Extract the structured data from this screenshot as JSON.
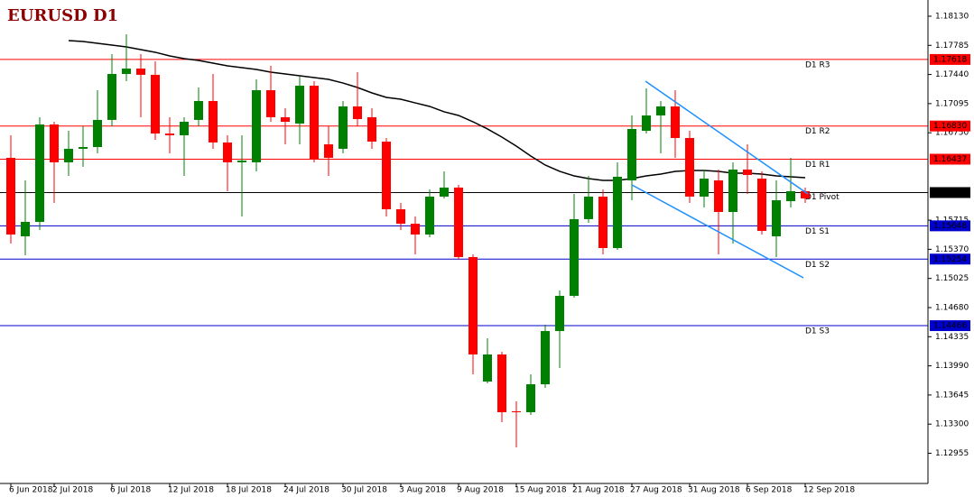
{
  "chart_data": {
    "type": "candlestick",
    "title": "EURUSD D1",
    "categories": [
      "6 Jun 2018",
      null,
      null,
      "2 Jul 2018",
      null,
      null,
      null,
      "6 Jul 2018",
      null,
      null,
      null,
      "12 Jul 2018",
      null,
      null,
      null,
      "18 Jul 2018",
      null,
      null,
      null,
      "24 Jul 2018",
      null,
      null,
      null,
      "30 Jul 2018",
      null,
      null,
      null,
      "3 Aug 2018",
      null,
      null,
      null,
      "9 Aug 2018",
      null,
      null,
      null,
      "15 Aug 2018",
      null,
      null,
      null,
      "21 Aug 2018",
      null,
      null,
      null,
      "27 Aug 2018",
      null,
      null,
      null,
      "31 Aug 2018",
      null,
      null,
      null,
      "6 Sep 2018",
      null,
      null,
      null,
      "12 Sep 2018"
    ],
    "open": [
      1.16453,
      1.15524,
      1.15695,
      1.16848,
      1.164,
      1.1656,
      1.16581,
      1.16902,
      1.17446,
      1.1751,
      1.17436,
      1.16741,
      1.1672,
      1.16902,
      1.17126,
      1.16635,
      1.164,
      1.164,
      1.17254,
      1.16934,
      1.16859,
      1.17307,
      1.16613,
      1.1656,
      1.17062,
      1.16934,
      1.16645,
      1.15844,
      1.15673,
      1.15545,
      1.15994,
      1.16101,
      1.15278,
      1.13804,
      1.14125,
      1.13452,
      1.13441,
      1.13772,
      1.14402,
      1.14819,
      1.15727,
      1.15994,
      1.15385,
      1.16186,
      1.16773,
      1.16955,
      1.17062,
      1.16688,
      1.15994,
      1.16186,
      1.15812,
      1.16314,
      1.16207,
      1.15524,
      1.1594,
      1.16058
    ],
    "high": [
      1.1672,
      1.16186,
      1.16934,
      1.1688,
      1.16773,
      1.16827,
      1.17254,
      1.17681,
      1.17916,
      1.17681,
      1.17596,
      1.16934,
      1.16934,
      1.17286,
      1.17446,
      1.1672,
      1.1672,
      1.17382,
      1.17542,
      1.1704,
      1.17414,
      1.17361,
      1.16827,
      1.17126,
      1.17468,
      1.1704,
      1.16688,
      1.15919,
      1.15759,
      1.16079,
      1.16293,
      1.16133,
      1.1531,
      1.14317,
      1.14157,
      1.13569,
      1.1389,
      1.14477,
      1.14883,
      1.16026,
      1.16239,
      1.16079,
      1.164,
      1.16955,
      1.17275,
      1.17126,
      1.17254,
      1.16773,
      1.16314,
      1.16314,
      1.164,
      1.16613,
      1.16293,
      1.16186,
      1.16453,
      1.16101
    ],
    "low": [
      1.15438,
      1.153,
      1.15599,
      1.15919,
      1.16239,
      1.16346,
      1.16506,
      1.16827,
      1.17361,
      1.16934,
      1.16667,
      1.16506,
      1.16239,
      1.16827,
      1.1656,
      1.16058,
      1.15759,
      1.16293,
      1.1688,
      1.16613,
      1.16613,
      1.164,
      1.16239,
      1.16506,
      1.16827,
      1.1656,
      1.15759,
      1.15599,
      1.1531,
      1.15513,
      1.15972,
      1.15246,
      1.1389,
      1.13783,
      1.13324,
      1.13025,
      1.13409,
      1.1373,
      1.13965,
      1.14798,
      1.15684,
      1.1531,
      1.15364,
      1.15951,
      1.16741,
      1.16506,
      1.16453,
      1.15919,
      1.15866,
      1.1531,
      1.15438,
      1.16026,
      1.15545,
      1.15278,
      1.15866,
      1.15919
    ],
    "close": [
      1.15545,
      1.15695,
      1.16848,
      1.164,
      1.1656,
      1.16581,
      1.16902,
      1.17446,
      1.1751,
      1.17436,
      1.16741,
      1.1672,
      1.1688,
      1.17126,
      1.16635,
      1.164,
      1.16421,
      1.17254,
      1.16934,
      1.1688,
      1.17307,
      1.16432,
      1.16453,
      1.17062,
      1.16912,
      1.16645,
      1.15844,
      1.15673,
      1.15545,
      1.15994,
      1.16101,
      1.15278,
      1.14125,
      1.14125,
      1.13441,
      1.13441,
      1.13772,
      1.14402,
      1.14819,
      1.15727,
      1.15994,
      1.15385,
      1.16229,
      1.16795,
      1.16955,
      1.17062,
      1.16688,
      1.15994,
      1.16207,
      1.15812,
      1.16314,
      1.1625,
      1.15588,
      1.15951,
      1.16058,
      1.15972
    ],
    "ma_values": [
      null,
      null,
      null,
      null,
      1.17841,
      1.17831,
      1.17809,
      1.17788,
      1.17767,
      1.17735,
      1.17703,
      1.1766,
      1.17628,
      1.17606,
      1.17574,
      1.17542,
      1.17521,
      1.175,
      1.17468,
      1.17446,
      1.17425,
      1.17404,
      1.17382,
      1.17339,
      1.17286,
      1.17222,
      1.17169,
      1.17147,
      1.17104,
      1.17062,
      1.16998,
      1.16955,
      1.1688,
      1.16795,
      1.16699,
      1.16592,
      1.16474,
      1.16368,
      1.16293,
      1.16239,
      1.16207,
      1.16186,
      1.16186,
      1.16207,
      1.16239,
      1.16261,
      1.16293,
      1.16303,
      1.16303,
      1.16293,
      1.16271,
      1.16271,
      1.16261,
      1.16239,
      1.16229,
      1.16218
    ],
    "up_color": "#008000",
    "down_color": "#ff0000",
    "ma_color": "#000000",
    "ylim": [
      1.12608,
      1.18322
    ],
    "yticks": [
      {
        "value": 1.1813,
        "label": "1.18130"
      },
      1.17785,
      {
        "value": 1.1744,
        "label": "1.17440"
      },
      1.17095,
      {
        "value": 1.1675,
        "label": "1.16750"
      },
      1.15715,
      {
        "value": 1.1537,
        "label": "1.15370"
      },
      1.15025,
      {
        "value": 1.1468,
        "label": "1.14680"
      },
      1.14335,
      {
        "value": 1.1399,
        "label": "1.13990"
      },
      1.13645,
      {
        "value": 1.133,
        "label": "1.13300"
      },
      1.12955
    ],
    "levels": [
      {
        "name": "D1 R3",
        "value": 1.17618,
        "color": "#ff0000"
      },
      {
        "name": "D1 R2",
        "value": 1.1683,
        "label": "1.16830",
        "color": "#ff0000"
      },
      {
        "name": "D1 R1",
        "value": 1.16437,
        "color": "#ff0000"
      },
      {
        "name": "D1 Pivot",
        "value": 1.16042,
        "color": "#000000"
      },
      {
        "name": "D1 S1",
        "value": 1.15648,
        "color": "#0000cd"
      },
      {
        "name": "D1 S2",
        "value": 1.15254,
        "color": "#0000cd"
      },
      {
        "name": "D1 S3",
        "value": 1.14466,
        "color": "#0000cd"
      }
    ]
  }
}
